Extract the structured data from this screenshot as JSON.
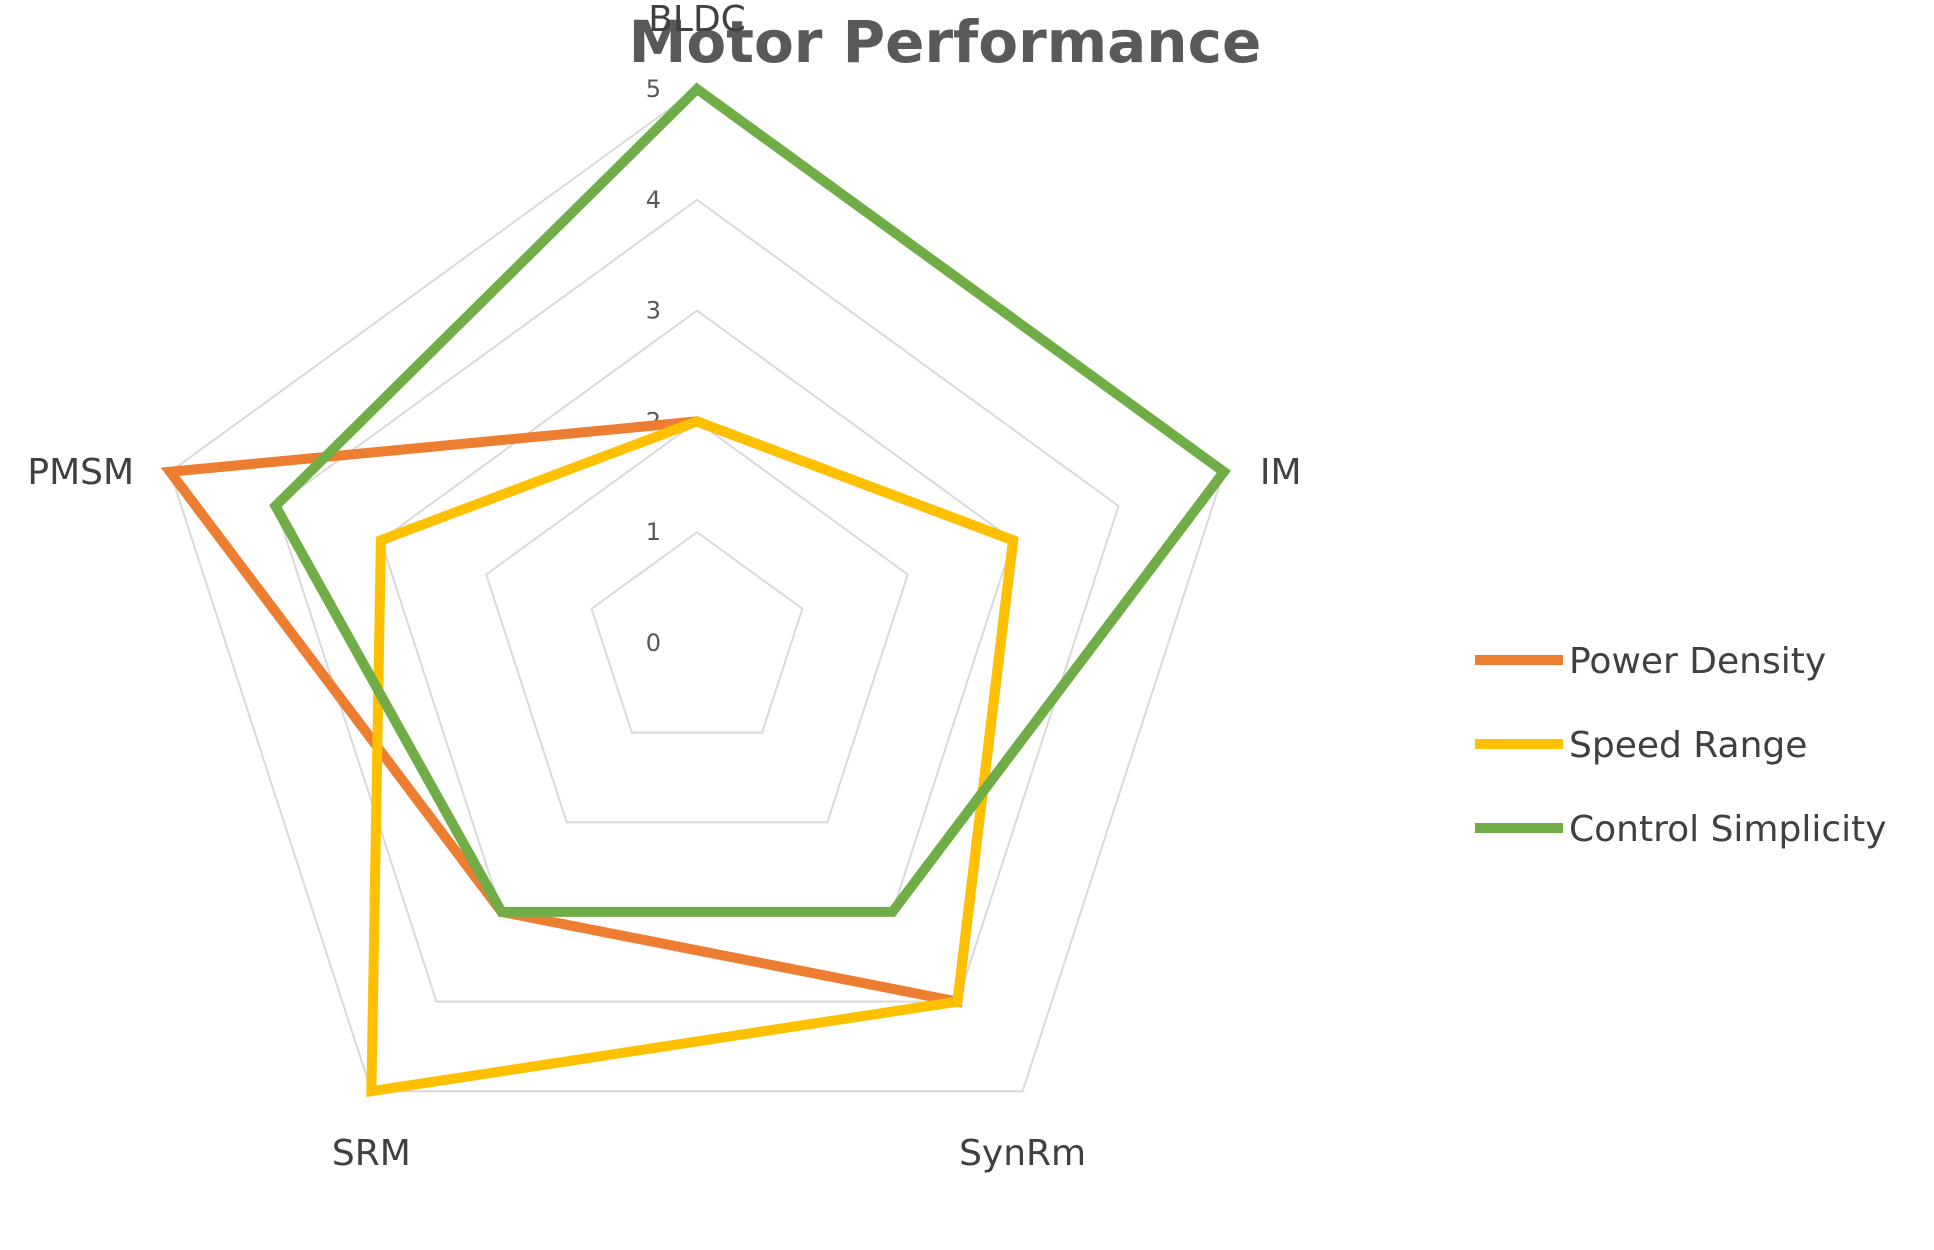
{
  "chart_data": {
    "type": "radar",
    "title": "Motor Performance",
    "categories": [
      "BLDC",
      "IM",
      "SynRm",
      "SRM",
      "PMSM"
    ],
    "r_ticks": [
      0,
      1,
      2,
      3,
      4,
      5
    ],
    "rlim": [
      0,
      5
    ],
    "grid": true,
    "legend_position": "right",
    "series": [
      {
        "name": "Power Density",
        "color": "#ED7D31",
        "values": [
          2,
          3,
          4,
          3,
          5
        ]
      },
      {
        "name": "Speed Range",
        "color": "#FFC000",
        "values": [
          2,
          3,
          4,
          5,
          3
        ]
      },
      {
        "name": "Control Simplicity",
        "color": "#70AD47",
        "values": [
          5,
          5,
          3,
          3,
          4
        ]
      }
    ]
  }
}
